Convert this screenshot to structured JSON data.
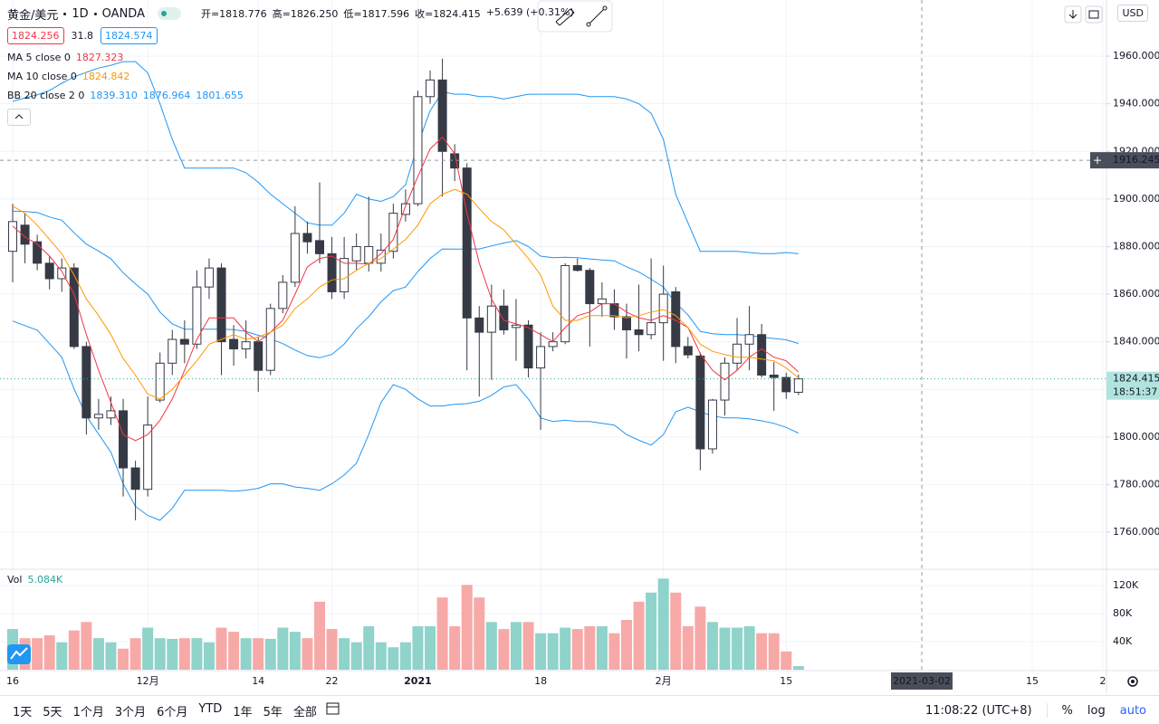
{
  "chart_data": {
    "type": "candlestick",
    "symbol": "黄金/美元",
    "interval": "1D",
    "exchange": "OANDA",
    "ohlc_text": [
      "开=1818.776",
      "高=1826.250",
      "低=1817.596",
      "收=1824.415",
      "+5.639 (+0.31%)"
    ],
    "bid": "1824.256",
    "spread": "31.8",
    "ask": "1824.574",
    "currency": "USD",
    "up_color": "#ffffff",
    "down_color": "#363a45",
    "wick_color": "#363a45",
    "categories": [
      "16",
      null,
      null,
      null,
      null,
      null,
      null,
      null,
      null,
      null,
      null,
      "12月",
      null,
      null,
      null,
      null,
      null,
      null,
      null,
      null,
      "14",
      null,
      null,
      null,
      null,
      null,
      "22",
      null,
      null,
      null,
      null,
      null,
      null,
      "2021",
      null,
      null,
      null,
      null,
      null,
      null,
      null,
      null,
      null,
      "18",
      null,
      null,
      null,
      null,
      null,
      null,
      null,
      null,
      null,
      "2月",
      null,
      null,
      null,
      null,
      null,
      null,
      null,
      null,
      null,
      "15",
      null
    ],
    "future_labels": [
      "15",
      "2"
    ],
    "candles": {
      "open": [
        1878,
        1889,
        1882,
        1873,
        1866.5,
        1871,
        1838,
        1808,
        1808,
        1811,
        1787,
        1778,
        1815.5,
        1831,
        1841,
        1839,
        1863,
        1871,
        1841,
        1837,
        1840,
        1828,
        1854,
        1865,
        1885.5,
        1882.5,
        1877,
        1861,
        1874,
        1873,
        1873,
        1878,
        1893.5,
        1898,
        1943,
        1950,
        1919,
        1913,
        1850,
        1844,
        1855,
        1846,
        1847,
        1829,
        1838,
        1840,
        1872,
        1870,
        1856,
        1856,
        1850.5,
        1845,
        1843,
        1848,
        1861,
        1838,
        1834,
        1795,
        1815.5,
        1831,
        1839,
        1843,
        1826,
        1825,
        1818.776
      ],
      "high": [
        1898,
        1894,
        1885,
        1876,
        1875,
        1873,
        1840,
        1816,
        1817,
        1816,
        1790,
        1817,
        1835.5,
        1845,
        1849,
        1870,
        1875,
        1873,
        1847,
        1849,
        1842,
        1856,
        1868,
        1897,
        1890.5,
        1907,
        1884,
        1884,
        1885.5,
        1901,
        1885.5,
        1898,
        1904,
        1945.5,
        1954,
        1959,
        1923,
        1915,
        1855,
        1864,
        1862,
        1858,
        1849,
        1844,
        1844,
        1873,
        1875,
        1871,
        1865,
        1862,
        1856,
        1864,
        1875,
        1872,
        1863,
        1842,
        1835.5,
        1816,
        1833.5,
        1850,
        1855,
        1847.5,
        1831.5,
        1827,
        1826.25
      ],
      "low": [
        1865,
        1873,
        1870,
        1862,
        1861,
        1837,
        1801,
        1803,
        1805,
        1775,
        1765,
        1775,
        1814.5,
        1826,
        1831,
        1837,
        1858,
        1826,
        1830,
        1833,
        1819,
        1826,
        1852,
        1863,
        1877,
        1873,
        1858,
        1858,
        1870,
        1869.5,
        1869.5,
        1875,
        1890.5,
        1897,
        1940,
        1901,
        1907.5,
        1828,
        1817,
        1824,
        1843,
        1832,
        1825,
        1803,
        1836,
        1839,
        1869.5,
        1838,
        1850.5,
        1845,
        1833,
        1836,
        1841,
        1832,
        1831,
        1833,
        1786,
        1793,
        1809,
        1828,
        1828,
        1825,
        1811,
        1816,
        1817.596
      ],
      "close": [
        1890.5,
        1881,
        1873,
        1866.5,
        1871,
        1838,
        1808,
        1809.5,
        1811,
        1787,
        1778,
        1805,
        1831,
        1841,
        1839,
        1863,
        1871,
        1840,
        1837,
        1840,
        1828,
        1854,
        1865,
        1885.5,
        1882,
        1877,
        1861,
        1875,
        1880,
        1880,
        1878.5,
        1894,
        1898,
        1943,
        1950,
        1920,
        1913,
        1850,
        1844,
        1855,
        1845,
        1847,
        1829,
        1838,
        1840,
        1872,
        1870,
        1856,
        1858,
        1850.5,
        1845,
        1843,
        1848,
        1860,
        1838,
        1834.5,
        1795,
        1815.5,
        1831,
        1839,
        1843,
        1826,
        1825,
        1819,
        1824.415
      ]
    },
    "series": [
      {
        "name": "MA 5 close 0",
        "color": "#f23645",
        "values": [
          1888.6,
          1884,
          1881,
          1876,
          1869.6,
          1860,
          1843,
          1828,
          1814.5,
          1801,
          1798.5,
          1801,
          1807,
          1816,
          1828,
          1841,
          1850,
          1850,
          1850,
          1844,
          1840,
          1844,
          1849,
          1860,
          1871.5,
          1875,
          1876,
          1873,
          1873,
          1872.6,
          1877,
          1883,
          1897,
          1909.5,
          1921,
          1926,
          1919,
          1894,
          1873,
          1858,
          1849,
          1847.5,
          1846,
          1843,
          1840,
          1846,
          1851,
          1852.5,
          1856,
          1856,
          1852.5,
          1850,
          1849,
          1851,
          1849,
          1846,
          1835,
          1828,
          1824,
          1828,
          1833.5,
          1837,
          1833.5,
          1832,
          1827.323
        ]
      },
      {
        "name": "MA 10 close 0",
        "color": "#ff9800",
        "values": [
          1897,
          1894,
          1889,
          1883,
          1877,
          1868,
          1858,
          1851,
          1843,
          1833,
          1826,
          1818,
          1816,
          1820,
          1826,
          1832,
          1839,
          1841,
          1843,
          1841,
          1842,
          1844,
          1847,
          1854,
          1858,
          1863,
          1866,
          1866.5,
          1870,
          1873,
          1875,
          1879,
          1883,
          1889,
          1898,
          1902,
          1904,
          1902,
          1896,
          1890.5,
          1887,
          1881,
          1875,
          1868,
          1855,
          1849,
          1849,
          1851,
          1851,
          1851,
          1850,
          1851,
          1852.5,
          1853.5,
          1851,
          1846,
          1839,
          1836,
          1834.6,
          1833.5,
          1833.5,
          1832.7,
          1832,
          1829,
          1824.842
        ]
      },
      {
        "name": "BB 20 close 2 0",
        "color": "#2196f3",
        "last_labels": [
          "1839.310",
          "1876.964",
          "1801.655"
        ],
        "basis": [
          1894.9,
          1894.7,
          1894.3,
          1892.4,
          1891.1,
          1885.8,
          1881,
          1878.1,
          1874.9,
          1869,
          1864.3,
          1860,
          1852.5,
          1847.5,
          1845.3,
          1845.3,
          1845.3,
          1845.3,
          1845.1,
          1844.3,
          1842.7,
          1841.2,
          1839.2,
          1836.5,
          1834.2,
          1833.3,
          1834.7,
          1839,
          1845.5,
          1850.5,
          1856.8,
          1861.5,
          1863,
          1869.5,
          1875,
          1879,
          1878.9,
          1879,
          1879,
          1880.3,
          1881.5,
          1882.5,
          1880,
          1876,
          1875.3,
          1875.5,
          1875.3,
          1874.8,
          1874.4,
          1874,
          1871.5,
          1869.3,
          1866.3,
          1863,
          1856.3,
          1851.3,
          1844.3,
          1843.4,
          1843,
          1843,
          1842.6,
          1841.9,
          1841.4,
          1840.8,
          1839.31
        ],
        "upper": [
          1941,
          1942.5,
          1943.7,
          1945.6,
          1948.6,
          1951.3,
          1953.2,
          1955,
          1956.2,
          1957.7,
          1957.7,
          1953,
          1940,
          1925,
          1913,
          1913,
          1913,
          1913,
          1913,
          1911,
          1907,
          1902,
          1898,
          1894,
          1890,
          1889,
          1889,
          1894,
          1902,
          1900,
          1899,
          1901,
          1906,
          1923,
          1937,
          1945,
          1944,
          1944,
          1943,
          1943,
          1942,
          1943,
          1944,
          1944,
          1944,
          1944,
          1944,
          1943,
          1943,
          1943,
          1942,
          1940,
          1936,
          1925,
          1902,
          1890,
          1878,
          1878,
          1878,
          1878,
          1877.5,
          1877,
          1877,
          1877.5,
          1876.964
        ],
        "lower": [
          1848.7,
          1846.8,
          1844.9,
          1839.2,
          1833.5,
          1820.2,
          1808.8,
          1801.2,
          1793.6,
          1780.3,
          1770.8,
          1767,
          1765,
          1770,
          1777.6,
          1777.6,
          1777.6,
          1777.6,
          1777.2,
          1777.6,
          1778.4,
          1780.3,
          1780.3,
          1779,
          1778.4,
          1777.6,
          1780.3,
          1784,
          1789,
          1801,
          1814.5,
          1822,
          1820,
          1816,
          1813,
          1813,
          1813.7,
          1814,
          1815,
          1817.5,
          1821,
          1822,
          1816,
          1808,
          1806.5,
          1807,
          1806.5,
          1806.5,
          1805.7,
          1805,
          1801,
          1798.6,
          1796.6,
          1801,
          1810.6,
          1812.5,
          1810.6,
          1808.8,
          1808,
          1808,
          1807.6,
          1806.8,
          1805.7,
          1804,
          1801.655
        ]
      }
    ],
    "ylim": [
      1744.8,
      1983.6
    ],
    "yticks": [
      {
        "value": 1760,
        "label": "1760.000"
      },
      {
        "value": 1780,
        "label": "1780.000"
      },
      {
        "value": 1800,
        "label": "1800.000"
      },
      {
        "value": 1820,
        "label": "1820.000"
      },
      {
        "value": 1840,
        "label": "1840.000"
      },
      {
        "value": 1860,
        "label": "1860.000"
      },
      {
        "value": 1880,
        "label": "1880.000"
      },
      {
        "value": 1900,
        "label": "1900.000"
      },
      {
        "value": 1920,
        "label": "1920.000"
      },
      {
        "value": 1940,
        "label": "1940.000"
      },
      {
        "value": 1960,
        "label": "1960.000"
      }
    ],
    "grid": true,
    "countdown": "18:51:37",
    "crosshair": {
      "price": 1916.245,
      "date": "2021-03-02"
    },
    "volume": {
      "name": "Vol",
      "up_color": "#8fd3cb",
      "down_color": "#f7a9a7",
      "values": [
        58000,
        45000,
        45000,
        49000,
        39000,
        56000,
        68000,
        45000,
        39000,
        30000,
        45000,
        60000,
        45000,
        44000,
        45000,
        45000,
        39000,
        60000,
        54000,
        45000,
        45000,
        44000,
        60000,
        54000,
        45000,
        97000,
        58000,
        45000,
        39000,
        62000,
        39000,
        32000,
        39000,
        62000,
        62000,
        103000,
        62000,
        121000,
        103000,
        68000,
        58000,
        68000,
        68000,
        52000,
        52000,
        60000,
        58000,
        62000,
        62000,
        52000,
        71000,
        97000,
        110000,
        130000,
        110000,
        62000,
        90000,
        68000,
        60000,
        60000,
        62000,
        52000,
        52000,
        26000,
        5084
      ],
      "last_label": "5.084K",
      "ylim": [
        0,
        142000
      ],
      "yticks": [
        {
          "value": 40000,
          "label": "40K"
        },
        {
          "value": 80000,
          "label": "80K"
        },
        {
          "value": 120000,
          "label": "120K"
        }
      ]
    }
  },
  "toolbar": {
    "ranges": [
      "1天",
      "5天",
      "1个月",
      "3个月",
      "6个月",
      "YTD",
      "1年",
      "5年",
      "全部"
    ],
    "time": "11:08:22 (UTC+8)",
    "options": [
      "%",
      "log",
      "auto"
    ]
  }
}
